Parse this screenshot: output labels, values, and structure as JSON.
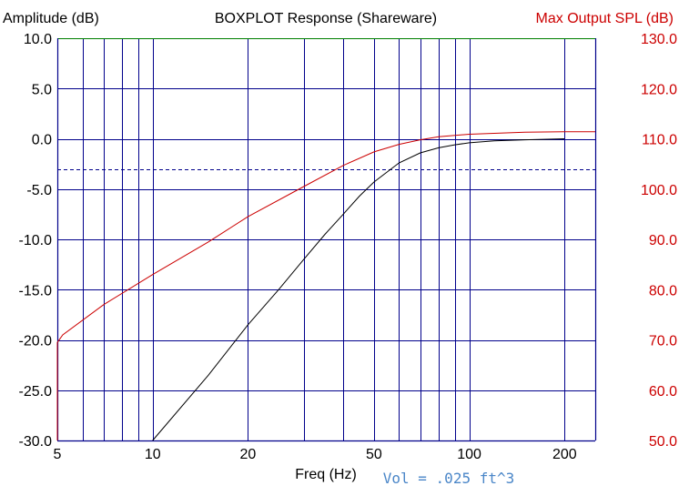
{
  "chart_data": {
    "type": "line",
    "title": "BOXPLOT  Response (Shareware)",
    "ylabel": "Amplitude (dB)",
    "ylabel_right": "Max Output SPL (dB)",
    "xlabel": "Freq (Hz)",
    "annotation": "Vol = .025 ft^3",
    "x_scale": "log",
    "xlim": [
      5,
      250
    ],
    "ylim": [
      -30,
      10
    ],
    "ylim_right": [
      50,
      130
    ],
    "x_ticks": [
      5,
      6,
      7,
      8,
      9,
      10,
      20,
      30,
      40,
      50,
      60,
      70,
      80,
      90,
      100,
      200
    ],
    "x_tick_labels": [
      {
        "value": 5,
        "label": "5"
      },
      {
        "value": 10,
        "label": "10"
      },
      {
        "value": 20,
        "label": "20"
      },
      {
        "value": 50,
        "label": "50"
      },
      {
        "value": 100,
        "label": "100"
      },
      {
        "value": 200,
        "label": "200"
      }
    ],
    "y_ticks": [
      "10.0",
      "5.0",
      "0.0",
      "-5.0",
      "-10.0",
      "-15.0",
      "-20.0",
      "-25.0",
      "-30.0"
    ],
    "y_ticks_right": [
      "130.0",
      "120.0",
      "110.0",
      "100.0",
      "90.0",
      "80.0",
      "70.0",
      "60.0",
      "50.0"
    ],
    "reference_line": {
      "y": -3,
      "style": "dashed"
    },
    "grid": true,
    "series": [
      {
        "axis": "left",
        "color": "#000000",
        "x": [
          10,
          15,
          20,
          25,
          30,
          35,
          40,
          45,
          50,
          60,
          70,
          80,
          90,
          100,
          120,
          150,
          200
        ],
        "y": [
          -30.0,
          -23.5,
          -18.5,
          -15.0,
          -12.0,
          -9.5,
          -7.5,
          -5.7,
          -4.3,
          -2.4,
          -1.4,
          -0.9,
          -0.6,
          -0.4,
          -0.2,
          -0.1,
          0.0
        ]
      },
      {
        "axis": "right",
        "color": "#cc0000",
        "x": [
          5,
          5,
          5.2,
          7,
          10,
          15,
          20,
          30,
          40,
          50,
          60,
          70,
          80,
          100,
          150,
          200,
          250
        ],
        "y": [
          50.0,
          69.5,
          71.0,
          77.0,
          83.0,
          89.5,
          94.5,
          100.5,
          104.7,
          107.4,
          108.9,
          109.8,
          110.4,
          110.9,
          111.3,
          111.4,
          111.4
        ]
      }
    ]
  },
  "colors": {
    "grid": "#00008b",
    "top_border": "#008000",
    "right_axis_text": "#cc0000",
    "annotation": "#4a86c8"
  }
}
